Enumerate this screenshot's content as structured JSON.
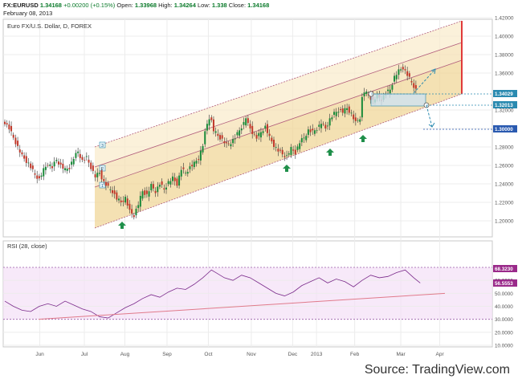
{
  "header": {
    "symbol": "FX:EURUSD",
    "last": "1.34168",
    "change": "+0.00200 (+0.15%)",
    "open_label": "Open:",
    "open": "1.33968",
    "high_label": "High:",
    "high": "1.34264",
    "low_label": "Low:",
    "low": "1.338",
    "close_label": "Close:",
    "close": "1.34168",
    "date": "February 08, 2013"
  },
  "source": "Source: TradingView.com",
  "chart_data": [
    {
      "type": "candlestick",
      "title": "Euro FX/U.S. Dollar, D, FOREX",
      "ylim": [
        1.18,
        1.42
      ],
      "price_ticks": [
        "1.42000",
        "1.40000",
        "1.38000",
        "1.36000",
        "1.32000",
        "1.30000",
        "1.28000",
        "1.26000",
        "1.24000",
        "1.22000",
        "1.20000"
      ],
      "x_ticks": [
        "Jun",
        "Jul",
        "Aug",
        "Sep",
        "Oct",
        "Nov",
        "Dec",
        "2013",
        "Feb",
        "Mar",
        "Apr"
      ],
      "close_series": [
        [
          0,
          1.31
        ],
        [
          3,
          1.3
        ],
        [
          6,
          1.285
        ],
        [
          9,
          1.27
        ],
        [
          12,
          1.262
        ],
        [
          15,
          1.25
        ],
        [
          17,
          1.245
        ],
        [
          19,
          1.255
        ],
        [
          21,
          1.262
        ],
        [
          23,
          1.258
        ],
        [
          25,
          1.266
        ],
        [
          27,
          1.26
        ],
        [
          29,
          1.255
        ],
        [
          31,
          1.258
        ],
        [
          33,
          1.268
        ],
        [
          35,
          1.275
        ],
        [
          37,
          1.265
        ],
        [
          39,
          1.268
        ],
        [
          41,
          1.258
        ],
        [
          43,
          1.248
        ],
        [
          45,
          1.252
        ],
        [
          47,
          1.242
        ],
        [
          49,
          1.236
        ],
        [
          51,
          1.232
        ],
        [
          53,
          1.224
        ],
        [
          55,
          1.22
        ],
        [
          57,
          1.225
        ],
        [
          59,
          1.21
        ],
        [
          61,
          1.206
        ],
        [
          63,
          1.218
        ],
        [
          65,
          1.232
        ],
        [
          67,
          1.228
        ],
        [
          69,
          1.238
        ],
        [
          71,
          1.232
        ],
        [
          73,
          1.24
        ],
        [
          75,
          1.234
        ],
        [
          77,
          1.242
        ],
        [
          79,
          1.246
        ],
        [
          81,
          1.24
        ],
        [
          83,
          1.256
        ],
        [
          85,
          1.252
        ],
        [
          87,
          1.258
        ],
        [
          89,
          1.262
        ],
        [
          91,
          1.268
        ],
        [
          93,
          1.282
        ],
        [
          94,
          1.295
        ],
        [
          95,
          1.305
        ],
        [
          96,
          1.312
        ],
        [
          97,
          1.308
        ],
        [
          98,
          1.298
        ],
        [
          100,
          1.292
        ],
        [
          102,
          1.288
        ],
        [
          104,
          1.282
        ],
        [
          106,
          1.285
        ],
        [
          108,
          1.29
        ],
        [
          110,
          1.298
        ],
        [
          112,
          1.306
        ],
        [
          113,
          1.312
        ],
        [
          114,
          1.304
        ],
        [
          116,
          1.296
        ],
        [
          118,
          1.29
        ],
        [
          120,
          1.296
        ],
        [
          122,
          1.302
        ],
        [
          124,
          1.29
        ],
        [
          126,
          1.282
        ],
        [
          128,
          1.276
        ],
        [
          130,
          1.272
        ],
        [
          132,
          1.27
        ],
        [
          134,
          1.278
        ],
        [
          136,
          1.274
        ],
        [
          138,
          1.285
        ],
        [
          140,
          1.29
        ],
        [
          142,
          1.298
        ],
        [
          144,
          1.296
        ],
        [
          146,
          1.3
        ],
        [
          148,
          1.306
        ],
        [
          150,
          1.3
        ],
        [
          152,
          1.31
        ],
        [
          154,
          1.316
        ],
        [
          156,
          1.32
        ],
        [
          158,
          1.318
        ],
        [
          160,
          1.322
        ],
        [
          162,
          1.316
        ],
        [
          164,
          1.306
        ],
        [
          166,
          1.312
        ],
        [
          167,
          1.333
        ],
        [
          168,
          1.34
        ],
        [
          170,
          1.336
        ],
        [
          172,
          1.33
        ],
        [
          174,
          1.335
        ],
        [
          176,
          1.332
        ],
        [
          178,
          1.338
        ],
        [
          180,
          1.342
        ],
        [
          182,
          1.356
        ],
        [
          184,
          1.362
        ],
        [
          186,
          1.366
        ],
        [
          188,
          1.358
        ],
        [
          190,
          1.35
        ],
        [
          192,
          1.342
        ]
      ],
      "channel_levels": [
        "1",
        "2",
        "3"
      ],
      "price_labels": [
        "1.34029",
        "1.32013",
        "1.30000"
      ],
      "highlighted_prices": [
        1.34029,
        1.32013,
        1.3
      ]
    },
    {
      "type": "line",
      "title": "RSI (28, close)",
      "ylim": [
        10,
        70
      ],
      "rsi_ticks": [
        "70.0000",
        "60.0000",
        "50.0000",
        "40.0000",
        "30.0000",
        "20.0000",
        "10.0000"
      ],
      "levels": [
        70,
        30
      ],
      "last_labels": [
        "68.3230",
        "56.5553"
      ],
      "x_ticks": [
        "Jun",
        "Jul",
        "Aug",
        "Sep",
        "Oct",
        "Nov",
        "Dec",
        "2013",
        "Feb",
        "Mar",
        "Apr"
      ],
      "values": [
        [
          0,
          44
        ],
        [
          4,
          40
        ],
        [
          8,
          37
        ],
        [
          12,
          36
        ],
        [
          16,
          40
        ],
        [
          20,
          42
        ],
        [
          24,
          40
        ],
        [
          28,
          44
        ],
        [
          32,
          41
        ],
        [
          36,
          38
        ],
        [
          40,
          36
        ],
        [
          44,
          32
        ],
        [
          48,
          31
        ],
        [
          52,
          35
        ],
        [
          56,
          39
        ],
        [
          60,
          42
        ],
        [
          64,
          46
        ],
        [
          68,
          49
        ],
        [
          72,
          47
        ],
        [
          76,
          51
        ],
        [
          80,
          54
        ],
        [
          84,
          53
        ],
        [
          88,
          57
        ],
        [
          92,
          62
        ],
        [
          96,
          68
        ],
        [
          98,
          66
        ],
        [
          102,
          62
        ],
        [
          106,
          60
        ],
        [
          110,
          64
        ],
        [
          114,
          62
        ],
        [
          118,
          58
        ],
        [
          122,
          54
        ],
        [
          126,
          50
        ],
        [
          130,
          48
        ],
        [
          134,
          51
        ],
        [
          138,
          56
        ],
        [
          142,
          59
        ],
        [
          146,
          62
        ],
        [
          150,
          58
        ],
        [
          154,
          61
        ],
        [
          158,
          59
        ],
        [
          162,
          55
        ],
        [
          166,
          60
        ],
        [
          170,
          64
        ],
        [
          174,
          62
        ],
        [
          178,
          63
        ],
        [
          182,
          66
        ],
        [
          186,
          68
        ],
        [
          190,
          62
        ],
        [
          193,
          58
        ]
      ]
    }
  ]
}
